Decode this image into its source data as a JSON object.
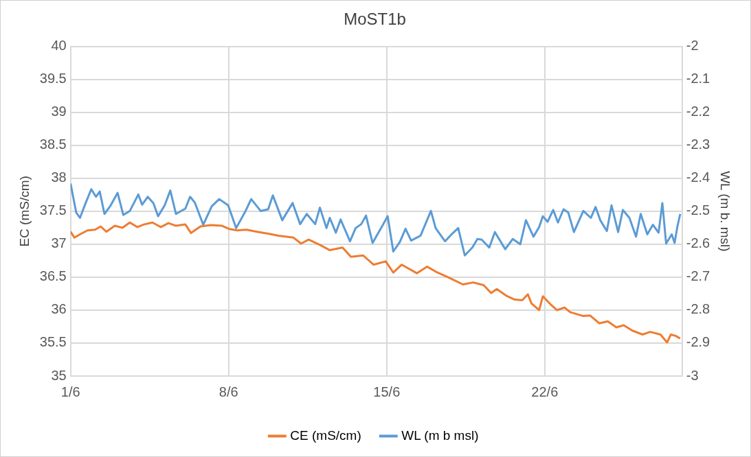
{
  "chart_data": {
    "type": "line",
    "title": "MoST1b",
    "ylabel": "EC (mS/cm)",
    "y2label": "WL (m b. msl)",
    "xlim": [
      "--06-01",
      "--06-28T02:00"
    ],
    "xticks": [
      {
        "value": "--06-01",
        "label": "1/6"
      },
      {
        "value": "--06-08",
        "label": "8/6"
      },
      {
        "value": "--06-15",
        "label": "15/6"
      },
      {
        "value": "--06-22",
        "label": "22/6"
      }
    ],
    "ylim": [
      35,
      40
    ],
    "yticks": [
      35,
      35.5,
      36,
      36.5,
      37,
      37.5,
      38,
      38.5,
      39,
      39.5,
      40
    ],
    "y2lim": [
      -3,
      -2
    ],
    "y2ticks": [
      -3,
      -2.9,
      -2.8,
      -2.7,
      -2.6,
      -2.5,
      -2.4,
      -2.3,
      -2.2,
      -2.1,
      -2
    ],
    "grid": true,
    "legend": "bottom",
    "marker": "none",
    "series": [
      {
        "name": "CE (mS/cm)",
        "color": "#ed7d31",
        "x": [
          "--06-01T00:00",
          "--06-01T04:00",
          "--06-01T10:00",
          "--06-01T18:00",
          "--06-02T02:00",
          "--06-02T08:00",
          "--06-02T14:00",
          "--06-02T23:00",
          "--06-03T07:00",
          "--06-03T15:00",
          "--06-03T23:00",
          "--06-04T06:00",
          "--06-04T15:00",
          "--06-05T00:00",
          "--06-05T08:00",
          "--06-05T16:00",
          "--06-06T02:00",
          "--06-06T08:00",
          "--06-06T18:00",
          "--06-07T05:00",
          "--06-07T17:00",
          "--06-08T01:00",
          "--06-08T09:00",
          "--06-08T19:00",
          "--06-09T06:00",
          "--06-09T18:00",
          "--06-10T05:00",
          "--06-10T21:00",
          "--06-11T05:00",
          "--06-11T13:00",
          "--06-12T01:00",
          "--06-12T11:30",
          "--06-13T01:00",
          "--06-13T10:00",
          "--06-13T23:00",
          "--06-14T10:00",
          "--06-14T23:00",
          "--06-15T07:00",
          "--06-15T16:00",
          "--06-16T08:00",
          "--06-16T19:00",
          "--06-17T06:00",
          "--06-17T17:00",
          "--06-18T09:00",
          "--06-18T20:00",
          "--06-19T07:00",
          "--06-19T15:00",
          "--06-19T21:00",
          "--06-20T07:00",
          "--06-20T16:00",
          "--06-21T00:00",
          "--06-21T06:00",
          "--06-21T10:00",
          "--06-21T18:00",
          "--06-21T22:00",
          "--06-22T06:00",
          "--06-22T13:00",
          "--06-22T21:00",
          "--06-23T03:00",
          "--06-23T17:00",
          "--06-24T00:00",
          "--06-24T10:00",
          "--06-24T19:00",
          "--06-25T04:00",
          "--06-25T12:00",
          "--06-25T21:00",
          "--06-26T08:00",
          "--06-26T16:00",
          "--06-27T03:00",
          "--06-27T10:00",
          "--06-27T14:00",
          "--06-27T19:00",
          "--06-28T00:00"
        ],
        "values": [
          37.19,
          37.1,
          37.15,
          37.21,
          37.22,
          37.27,
          37.19,
          37.28,
          37.25,
          37.33,
          37.26,
          37.3,
          37.33,
          37.26,
          37.32,
          37.28,
          37.3,
          37.17,
          37.27,
          37.29,
          37.28,
          37.23,
          37.21,
          37.22,
          37.19,
          37.16,
          37.13,
          37.1,
          37.01,
          37.07,
          36.99,
          36.91,
          36.95,
          36.81,
          36.83,
          36.69,
          36.74,
          36.57,
          36.69,
          36.56,
          36.66,
          36.57,
          36.5,
          36.39,
          36.42,
          36.38,
          36.26,
          36.32,
          36.22,
          36.16,
          36.15,
          36.24,
          36.1,
          36.0,
          36.21,
          36.09,
          36.0,
          36.04,
          35.97,
          35.91,
          35.92,
          35.8,
          35.83,
          35.74,
          35.77,
          35.69,
          35.63,
          35.67,
          35.63,
          35.51,
          35.63,
          35.61,
          35.57
        ]
      },
      {
        "name": "WL (m b msl)",
        "color": "#5b9bd5",
        "axis": "y2",
        "x": [
          "--06-01T00:00",
          "--06-01T06:00",
          "--06-01T10:00",
          "--06-01T16:00",
          "--06-01T22:00",
          "--06-02T03:00",
          "--06-02T07:00",
          "--06-02T12:00",
          "--06-02T18:00",
          "--06-03T02:00",
          "--06-03T08:00",
          "--06-03T15:00",
          "--06-04T00:00",
          "--06-04T04:00",
          "--06-04T10:00",
          "--06-04T16:00",
          "--06-04T21:00",
          "--06-05T04:00",
          "--06-05T10:00",
          "--06-05T16:00",
          "--06-06T02:00",
          "--06-06T07:00",
          "--06-06T12:00",
          "--06-06T21:00",
          "--06-07T06:00",
          "--06-07T14:00",
          "--06-07T23:30",
          "--06-08T08:00",
          "--06-08T18:00",
          "--06-09T00:00",
          "--06-09T10:00",
          "--06-09T18:00",
          "--06-09T23:00",
          "--06-10T09:00",
          "--06-10T20:00",
          "--06-11T04:00",
          "--06-11T11:00",
          "--06-11T20:00",
          "--06-12T01:00",
          "--06-12T08:00",
          "--06-12T11:30",
          "--06-12T18:00",
          "--06-12T23:00",
          "--06-13T09:00",
          "--06-13T15:00",
          "--06-13T21:00",
          "--06-14T02:00",
          "--06-14T09:00",
          "--06-14T19:00",
          "--06-15T01:00",
          "--06-15T07:00",
          "--06-15T14:00",
          "--06-15T20:00",
          "--06-16T02:00",
          "--06-16T12:00",
          "--06-16T23:00",
          "--06-17T04:00",
          "--06-17T14:00",
          "--06-17T22:00",
          "--06-18T04:00",
          "--06-18T11:00",
          "--06-18T19:00",
          "--06-19T00:30",
          "--06-19T05:00",
          "--06-19T13:00",
          "--06-19T19:00",
          "--06-20T06:00",
          "--06-20T14:00",
          "--06-20T22:00",
          "--06-21T04:00",
          "--06-21T12:00",
          "--06-21T18:00",
          "--06-21T22:00",
          "--06-22T03:00",
          "--06-22T09:00",
          "--06-22T14:00",
          "--06-22T20:00",
          "--06-23T01:00",
          "--06-23T07:00",
          "--06-23T17:00",
          "--06-24T01:00",
          "--06-24T06:00",
          "--06-24T11:00",
          "--06-24T18:00",
          "--06-24T23:00",
          "--06-25T06:00",
          "--06-25T11:00",
          "--06-25T18:00",
          "--06-26T01:00",
          "--06-26T06:00",
          "--06-26T13:00",
          "--06-26T19:00",
          "--06-27T01:00",
          "--06-27T05:00",
          "--06-27T09:00",
          "--06-27T15:00",
          "--06-27T18:00",
          "--06-27T21:00",
          "--06-28T00:00"
        ],
        "values": [
          -2.416,
          -2.504,
          -2.52,
          -2.475,
          -2.433,
          -2.456,
          -2.44,
          -2.508,
          -2.485,
          -2.444,
          -2.511,
          -2.499,
          -2.449,
          -2.48,
          -2.456,
          -2.475,
          -2.515,
          -2.482,
          -2.437,
          -2.508,
          -2.492,
          -2.456,
          -2.473,
          -2.541,
          -2.485,
          -2.463,
          -2.482,
          -2.551,
          -2.499,
          -2.463,
          -2.499,
          -2.494,
          -2.452,
          -2.527,
          -2.475,
          -2.539,
          -2.508,
          -2.539,
          -2.489,
          -2.551,
          -2.52,
          -2.565,
          -2.525,
          -2.591,
          -2.551,
          -2.539,
          -2.513,
          -2.596,
          -2.546,
          -2.515,
          -2.622,
          -2.593,
          -2.553,
          -2.589,
          -2.574,
          -2.499,
          -2.551,
          -2.591,
          -2.567,
          -2.551,
          -2.634,
          -2.61,
          -2.584,
          -2.586,
          -2.61,
          -2.563,
          -2.615,
          -2.584,
          -2.6,
          -2.527,
          -2.577,
          -2.548,
          -2.515,
          -2.532,
          -2.496,
          -2.534,
          -2.494,
          -2.504,
          -2.563,
          -2.499,
          -2.52,
          -2.487,
          -2.527,
          -2.56,
          -2.482,
          -2.563,
          -2.496,
          -2.52,
          -2.577,
          -2.508,
          -2.57,
          -2.541,
          -2.565,
          -2.475,
          -2.598,
          -2.57,
          -2.596,
          -2.546,
          -2.508
        ]
      }
    ]
  }
}
